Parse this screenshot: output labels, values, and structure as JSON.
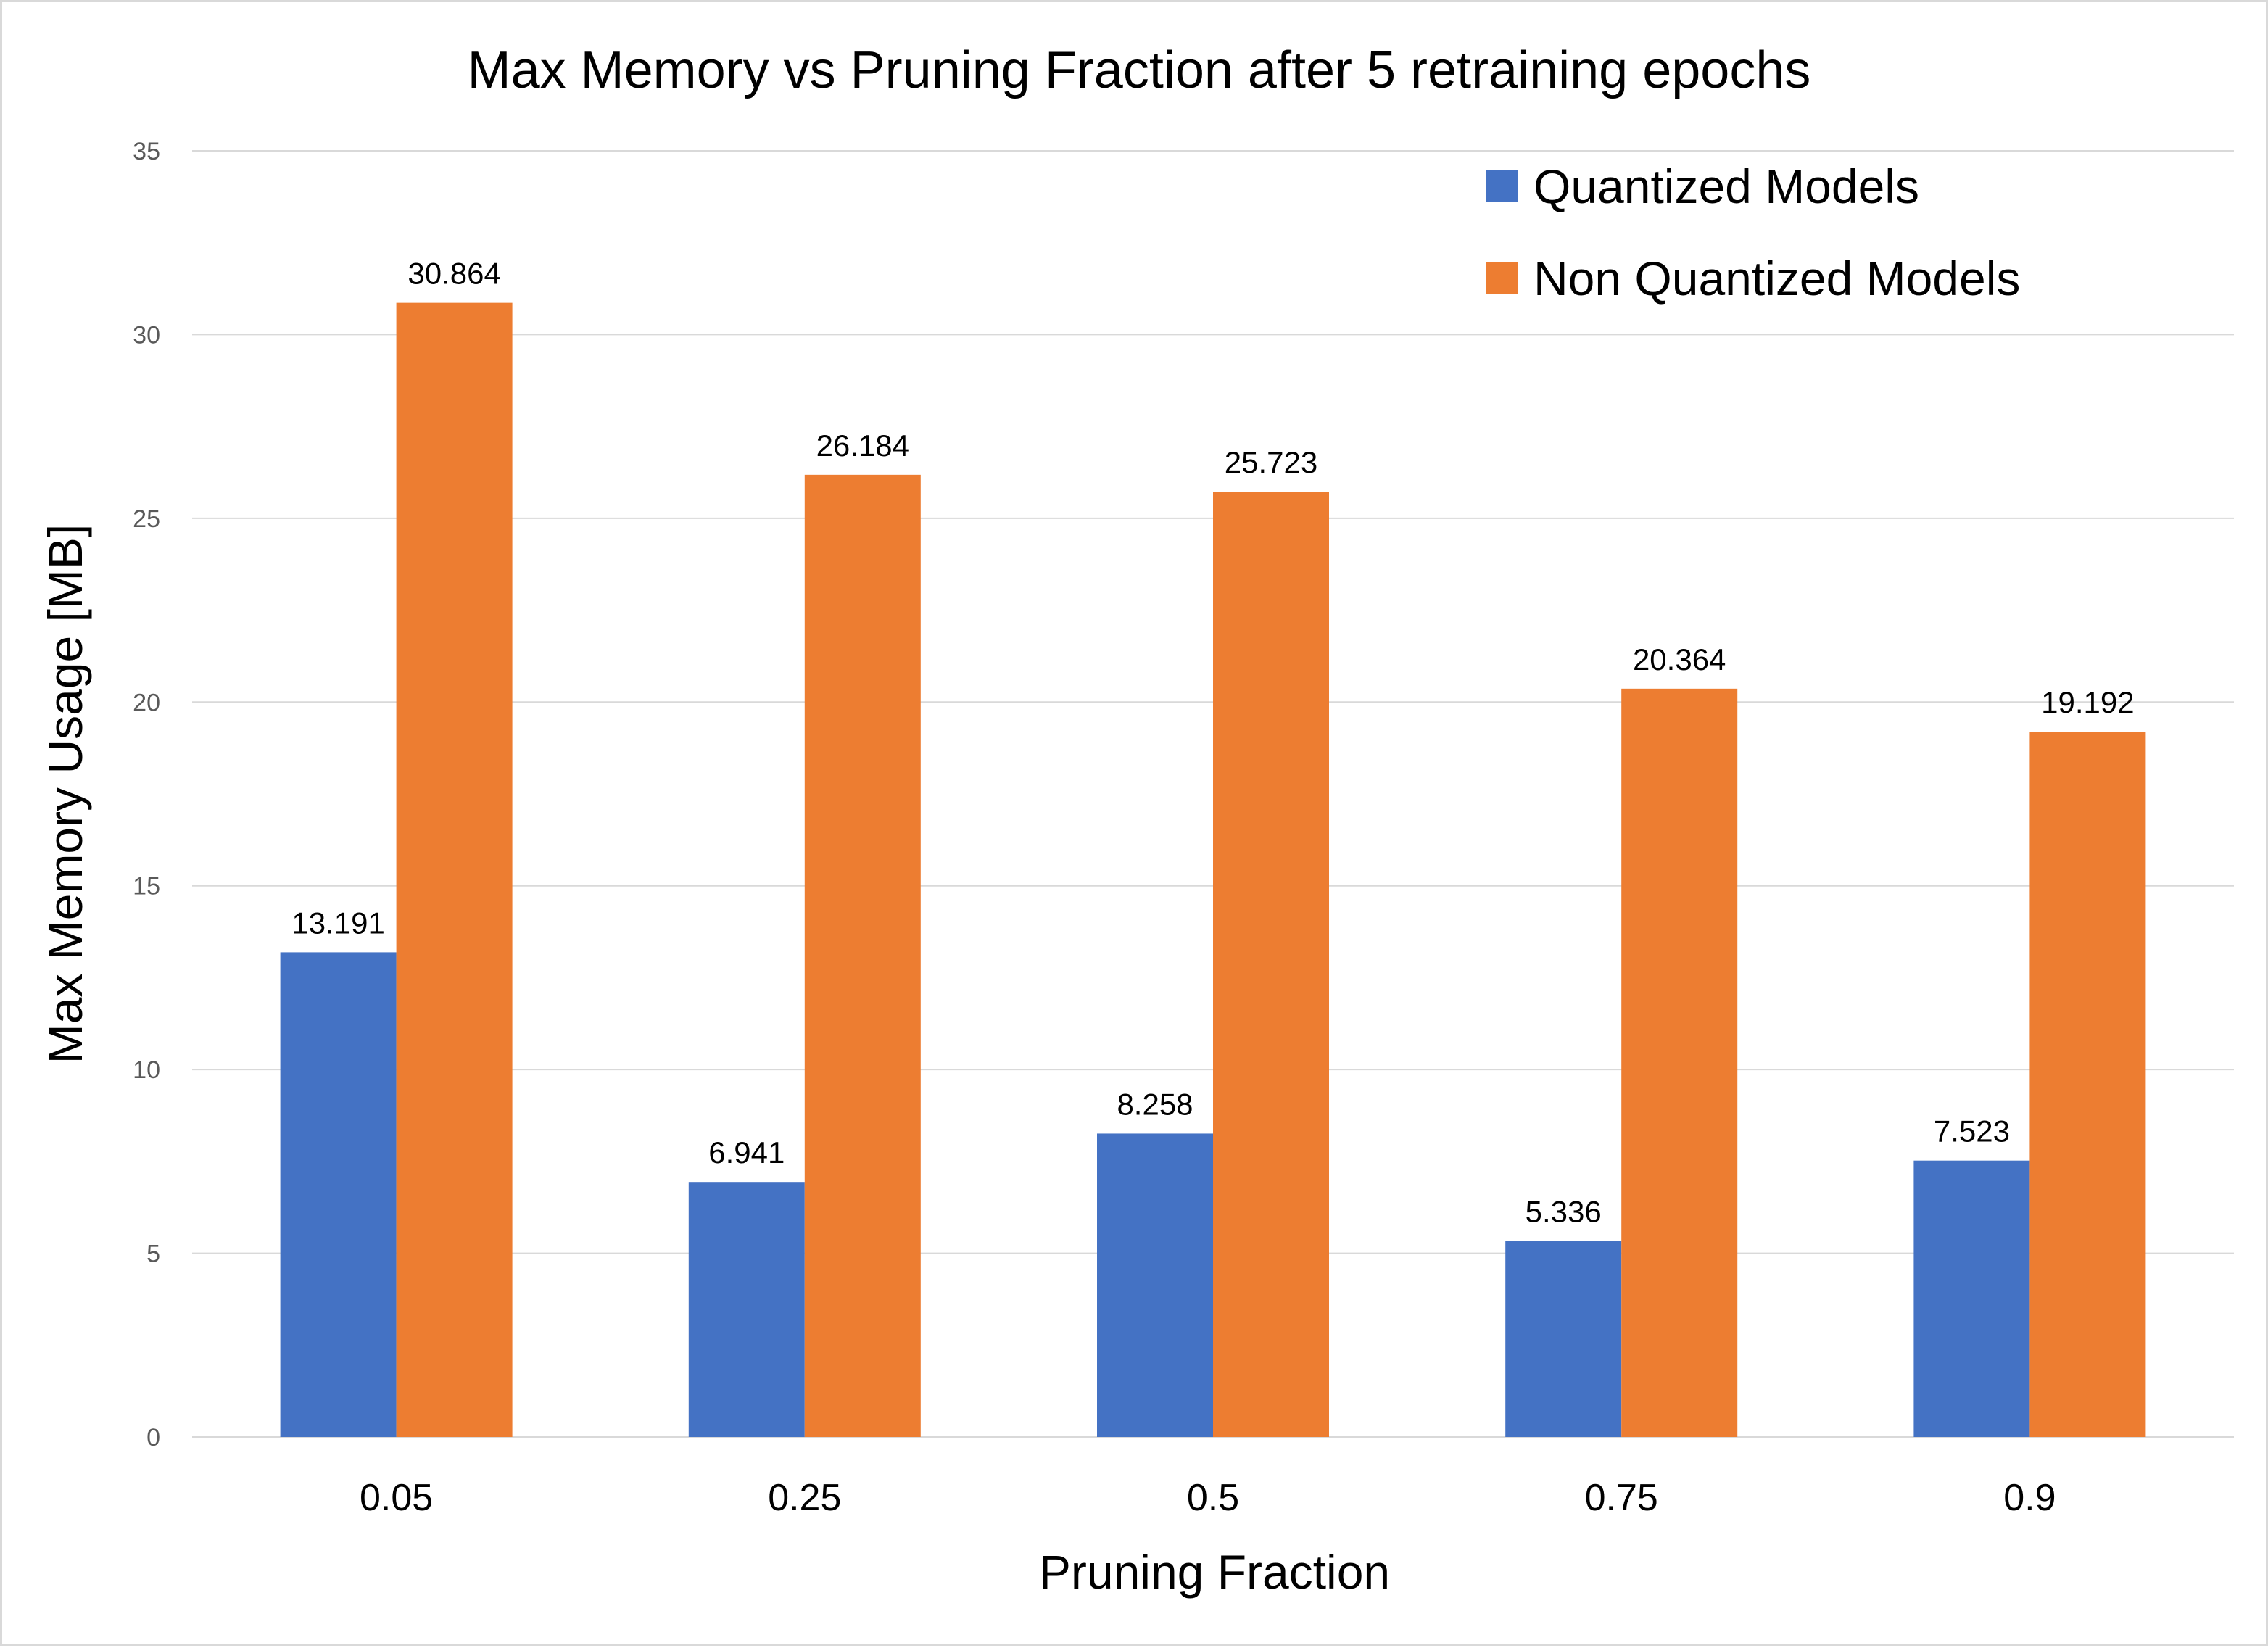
{
  "chart_data": {
    "type": "bar",
    "title": "Max Memory vs Pruning Fraction after 5 retraining epochs",
    "xlabel": "Pruning Fraction",
    "ylabel": "Max Memory Usage [MB]",
    "categories": [
      "0.05",
      "0.25",
      "0.5",
      "0.75",
      "0.9"
    ],
    "series": [
      {
        "name": "Quantized Models",
        "color": "#4472c4",
        "values": [
          13.191,
          6.941,
          8.258,
          5.336,
          7.523
        ],
        "labels": [
          "13.191",
          "6.941",
          "8.258",
          "5.336",
          "7.523"
        ]
      },
      {
        "name": "Non Quantized Models",
        "color": "#ed7d31",
        "values": [
          30.864,
          26.184,
          25.723,
          20.364,
          19.192
        ],
        "labels": [
          "30.864",
          "26.184",
          "25.723",
          "20.364",
          "19.192"
        ]
      }
    ],
    "ylim": [
      0,
      35
    ],
    "yticks": [
      "0",
      "5",
      "10",
      "15",
      "20",
      "25",
      "30",
      "35"
    ],
    "grid": true,
    "legend_position": "top-right"
  }
}
